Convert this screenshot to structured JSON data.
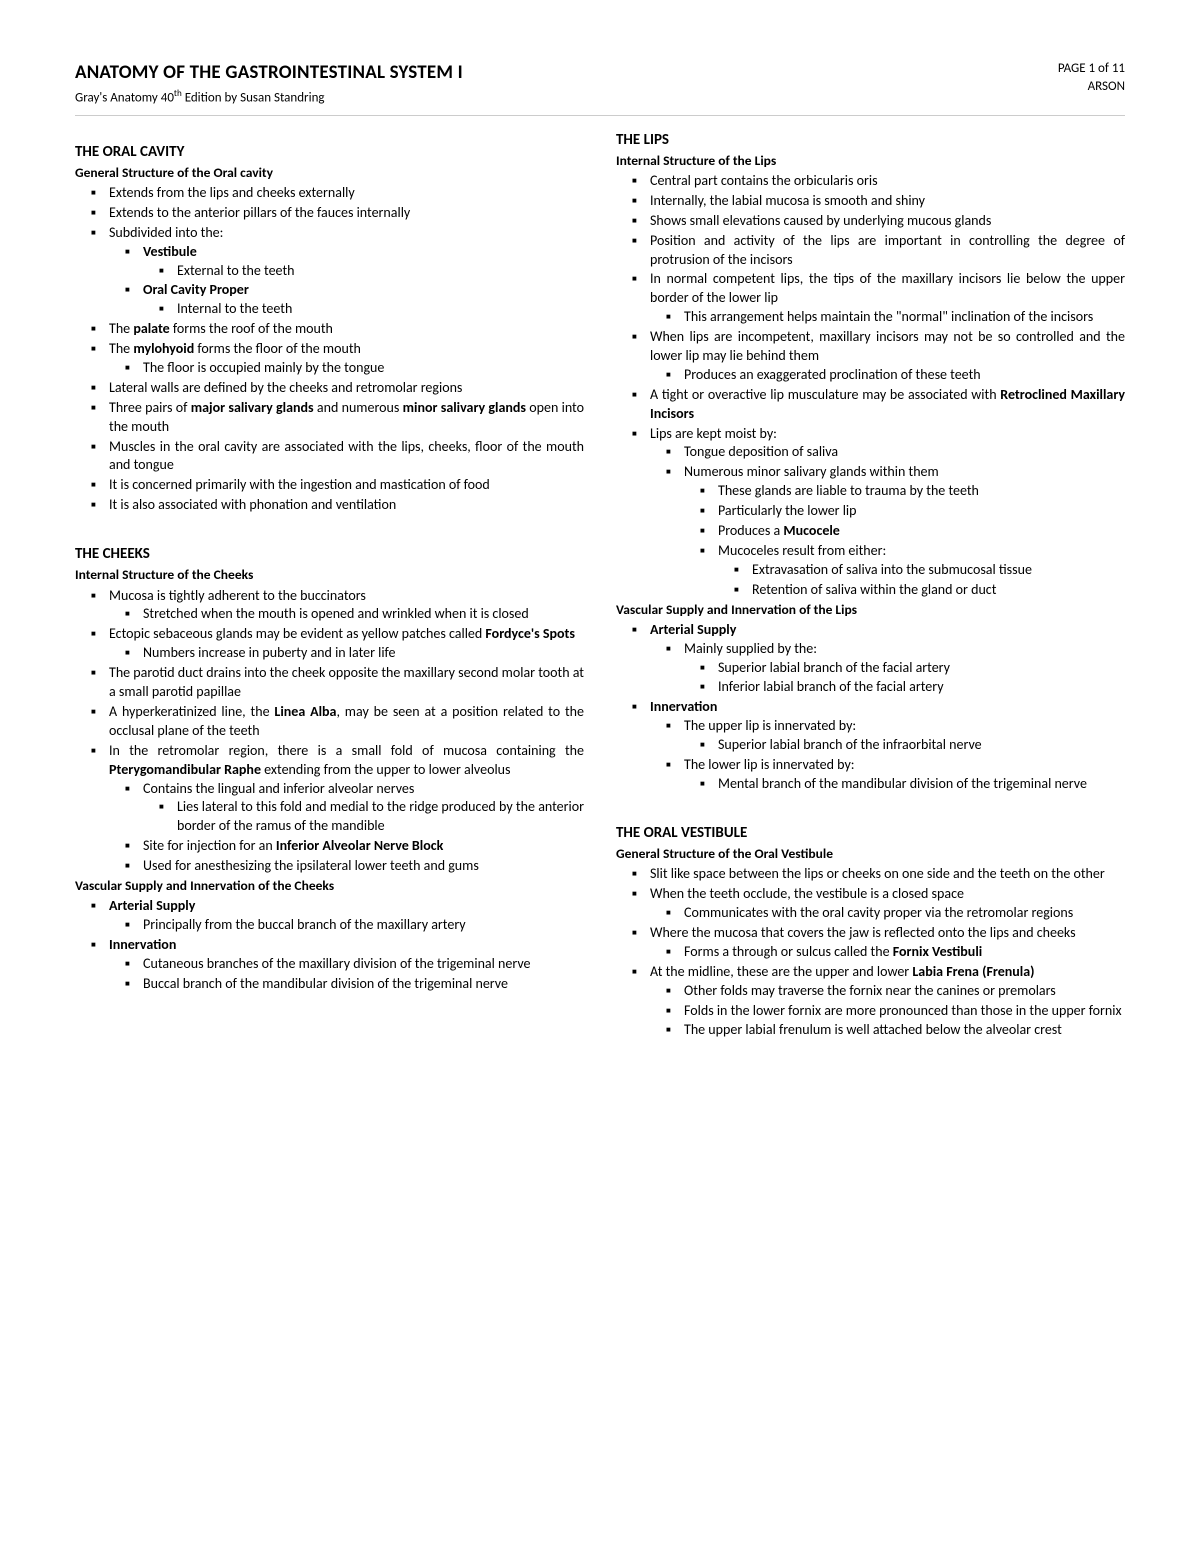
{
  "header": {
    "title": "ANATOMY OF THE GASTROINTESTINAL SYSTEM I",
    "subtitle_pre": "Gray's Anatomy 40",
    "subtitle_sup": "th",
    "subtitle_post": " Edition by Susan Standring",
    "page": "PAGE 1 of 11",
    "code": "ARSON"
  },
  "s1": {
    "head": "THE ORAL CAVITY",
    "sub": "General Structure of the Oral cavity",
    "a": "Extends from the lips and cheeks externally",
    "b": "Extends to the anterior pillars of the fauces internally",
    "c": "Subdivided into the:",
    "c1": "Vestibule",
    "c1a": "External to the teeth",
    "c2": "Oral Cavity Proper",
    "c2a": "Internal to the teeth",
    "d_pre": "The ",
    "d_b": "palate",
    "d_post": " forms the roof of the mouth",
    "e_pre": "The ",
    "e_b": "mylohyoid",
    "e_post": " forms the floor of the mouth",
    "e1": "The floor is occupied mainly by the tongue",
    "f": "Lateral walls are defined by the cheeks and retromolar regions",
    "g_pre": "Three pairs of ",
    "g_b1": "major salivary glands",
    "g_mid": " and numerous ",
    "g_b2": "minor salivary glands",
    "g_post": " open into the mouth",
    "h": "Muscles in the oral cavity are associated with the lips, cheeks, floor of the mouth and tongue",
    "i": "It is concerned primarily with the ingestion and mastication of food",
    "j": "It is also associated with phonation and ventilation"
  },
  "s2": {
    "head": "THE CHEEKS",
    "sub": "Internal Structure of the Cheeks",
    "a": "Mucosa is tightly adherent to the buccinators",
    "a1": "Stretched when the mouth is opened and wrinkled when it is closed",
    "b_pre": "Ectopic sebaceous glands may be evident as yellow patches called ",
    "b_b": "Fordyce's Spots",
    "b1": "Numbers increase in puberty and in later life",
    "c": "The parotid duct drains into the cheek opposite the maxillary second molar tooth at a small parotid papillae",
    "d_pre": "A hyperkeratinized line, the ",
    "d_b": "Linea Alba",
    "d_post": ", may be seen at a position related to the occlusal plane of the teeth",
    "e_pre": "In the retromolar region, there is a small fold of mucosa containing the ",
    "e_b": "Pterygomandibular Raphe",
    "e_post": " extending from the upper to lower alveolus",
    "e1": "Contains the lingual and inferior alveolar nerves",
    "e1a": "Lies lateral to this fold and medial to the ridge produced by the anterior border of the ramus of the mandible",
    "e2_pre": "Site for injection for an ",
    "e2_b": "Inferior Alveolar Nerve Block",
    "e3": "Used for anesthesizing the ipsilateral lower teeth and gums",
    "sub2": "Vascular Supply and Innervation of the Cheeks",
    "f": "Arterial Supply",
    "f1": "Principally from the buccal branch of the maxillary artery",
    "g": "Innervation",
    "g1": "Cutaneous branches of the maxillary division of the trigeminal nerve",
    "g2": "Buccal branch of the mandibular division of the trigeminal nerve"
  },
  "s3": {
    "head": "THE LIPS",
    "sub": "Internal Structure of the Lips",
    "a": "Central part contains the orbicularis oris",
    "b": "Internally, the labial mucosa is smooth and shiny",
    "c": "Shows small elevations caused by underlying mucous glands",
    "d": "Position and activity of the lips are important in controlling the degree of protrusion of the incisors",
    "e": "In normal competent lips, the tips of the maxillary incisors lie below the upper border of the lower lip",
    "e1": "This arrangement helps maintain the \"normal\" inclination of the incisors",
    "f": "When lips are incompetent, maxillary incisors may not be so controlled and the lower lip may lie behind them",
    "f1": "Produces an exaggerated proclination of these teeth",
    "g_pre": "A tight or overactive lip musculature may be associated with ",
    "g_b": "Retroclined Maxillary Incisors",
    "h": "Lips are kept moist by:",
    "h1": "Tongue deposition of saliva",
    "h2": "Numerous minor salivary glands within them",
    "h2a": "These glands are liable to trauma by the teeth",
    "h2b": "Particularly the lower lip",
    "h2c_pre": "Produces a ",
    "h2c_b": "Mucocele",
    "h2d": "Mucoceles result from either:",
    "h2d1": "Extravasation of saliva into the submucosal tissue",
    "h2d2": "Retention of saliva within the gland or duct",
    "sub2": "Vascular Supply and Innervation of the Lips",
    "i": "Arterial Supply",
    "i1": "Mainly supplied by the:",
    "i1a": "Superior labial branch of the facial artery",
    "i1b": "Inferior labial branch of the facial artery",
    "j": "Innervation",
    "j1": "The upper lip is innervated by:",
    "j1a": "Superior labial branch of the infraorbital nerve",
    "j2": "The lower lip is innervated by:",
    "j2a": "Mental branch of the mandibular division of the trigeminal nerve"
  },
  "s4": {
    "head": "THE ORAL VESTIBULE",
    "sub": "General Structure of the Oral Vestibule",
    "a": "Slit like space between the lips or cheeks on one side and the teeth on the other",
    "b": "When the teeth occlude, the vestibule is a closed space",
    "b1": "Communicates with the oral cavity proper via the retromolar regions",
    "c": "Where the mucosa that covers the jaw is reflected onto the lips and cheeks",
    "c1_pre": "Forms a through or sulcus called the ",
    "c1_b": "Fornix Vestibuli",
    "d_pre": "At the midline, these are the upper and lower ",
    "d_b": "Labia Frena (Frenula)",
    "d1": "Other folds may traverse the fornix near the canines or premolars",
    "d2": "Folds in the lower fornix are more pronounced than those in the upper fornix",
    "d3": "The upper labial frenulum is well attached below the alveolar crest"
  }
}
